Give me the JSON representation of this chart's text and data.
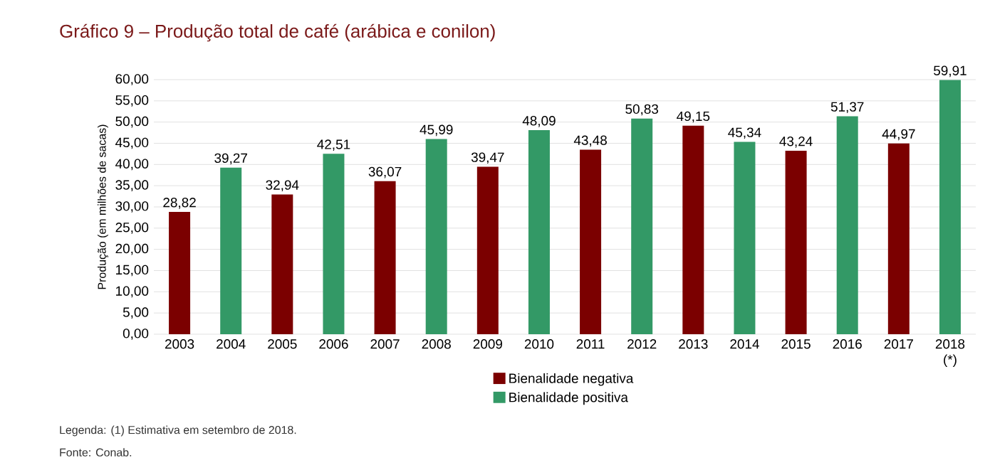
{
  "chart_data": {
    "type": "bar",
    "title": "Gráfico 9 – Produção total de café (arábica e conilon)",
    "ylabel": "Produção (em milhões de sacas)",
    "categories": [
      "2003",
      "2004",
      "2005",
      "2006",
      "2007",
      "2008",
      "2009",
      "2010",
      "2011",
      "2012",
      "2013",
      "2014",
      "2015",
      "2016",
      "2017",
      "2018 (*)"
    ],
    "series": [
      {
        "name": "Bienalidade negativa",
        "color": "#7b0000",
        "values": [
          28.82,
          null,
          32.94,
          null,
          36.07,
          null,
          39.47,
          null,
          43.48,
          null,
          49.15,
          null,
          43.24,
          null,
          44.97,
          null
        ],
        "value_labels": [
          "28,82",
          null,
          "32,94",
          null,
          "36,07",
          null,
          "39,47",
          null,
          "43,48",
          null,
          "49,15",
          null,
          "43,24",
          null,
          "44,97",
          null
        ]
      },
      {
        "name": "Bienalidade positiva",
        "color": "#339966",
        "values": [
          null,
          39.27,
          null,
          42.51,
          null,
          45.99,
          null,
          48.09,
          null,
          50.83,
          null,
          45.34,
          null,
          51.37,
          null,
          59.91
        ],
        "value_labels": [
          null,
          "39,27",
          null,
          "42,51",
          null,
          "45,99",
          null,
          "48,09",
          null,
          "50,83",
          null,
          "45,34",
          null,
          "51,37",
          null,
          "59,91"
        ]
      }
    ],
    "ylim": [
      0,
      60
    ],
    "yticks": [
      {
        "value": 0,
        "label": "0,00"
      },
      {
        "value": 5,
        "label": "5,00"
      },
      {
        "value": 10,
        "label": "10,00"
      },
      {
        "value": 15,
        "label": "15,00"
      },
      {
        "value": 20,
        "label": "20,00"
      },
      {
        "value": 25,
        "label": "25,00"
      },
      {
        "value": 30,
        "label": "30,00"
      },
      {
        "value": 35,
        "label": "35,00"
      },
      {
        "value": 40,
        "label": "40,00"
      },
      {
        "value": 45,
        "label": "45,00"
      },
      {
        "value": 50,
        "label": "50,00"
      },
      {
        "value": 55,
        "label": "55,00"
      },
      {
        "value": 60,
        "label": "60,00"
      }
    ],
    "grid": "y",
    "legend": "bottom",
    "annotations": [
      "Legenda: (1) Estimativa em setembro de 2018.",
      "Fonte: Conab."
    ]
  }
}
